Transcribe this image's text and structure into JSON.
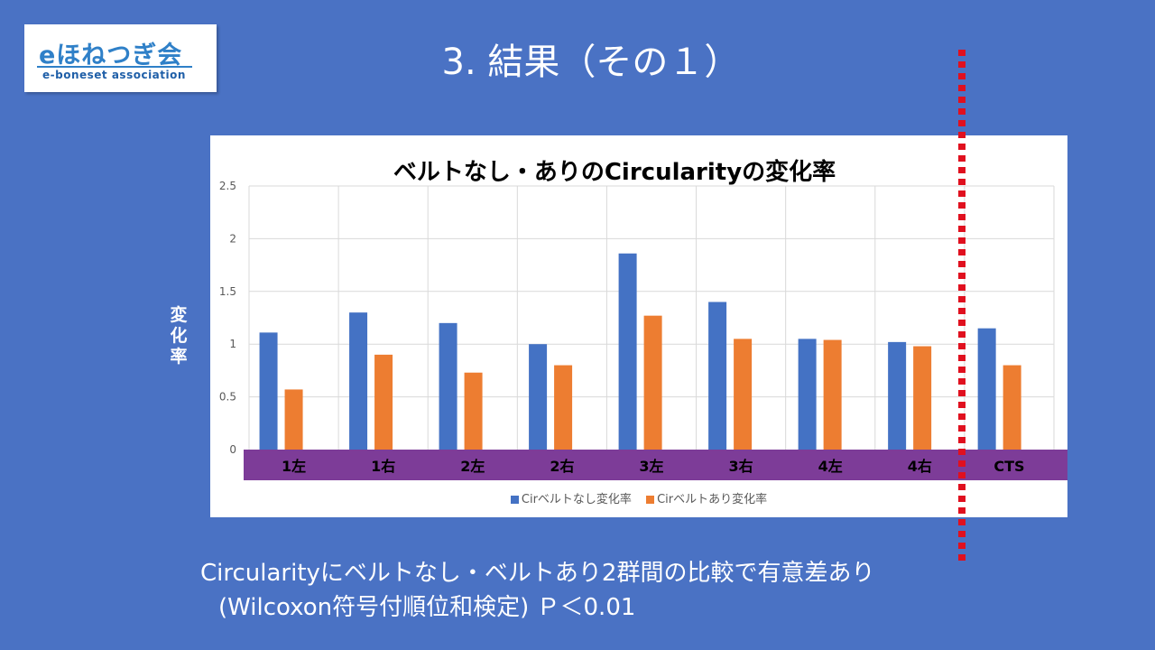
{
  "logo": {
    "main": "eほねつぎ会",
    "sub": "e-boneset association"
  },
  "slide_title": "3. 結果（その１）",
  "chart_data": {
    "type": "bar",
    "title": "ベルトなし・ありのCircularityの変化率",
    "ylabel": "変化率",
    "xlabel": "",
    "categories": [
      "1左",
      "1右",
      "2左",
      "2右",
      "3左",
      "3右",
      "4左",
      "4右",
      "CTS"
    ],
    "series": [
      {
        "name": "Cirベルトなし変化率",
        "color": "#4472c4",
        "values": [
          1.11,
          1.3,
          1.2,
          1.0,
          1.86,
          1.4,
          1.05,
          1.02,
          1.15
        ]
      },
      {
        "name": "Cirベルトあり変化率",
        "color": "#ed7d31",
        "values": [
          0.57,
          0.9,
          0.73,
          0.8,
          1.27,
          1.05,
          1.04,
          0.98,
          0.8
        ]
      }
    ],
    "ylim": [
      0,
      2.5
    ],
    "yticks": [
      "0",
      "0.5",
      "1",
      "1.5",
      "2",
      "2.5"
    ],
    "grid": true,
    "legend_position": "bottom",
    "category_band_color": "#7d3c98"
  },
  "conclusion": {
    "line1": "Circularityにベルトなし・ベルトあり2群間の比較で有意差あり",
    "line2": "(Wilcoxon符号付順位和検定) Ｐ＜0.01"
  }
}
